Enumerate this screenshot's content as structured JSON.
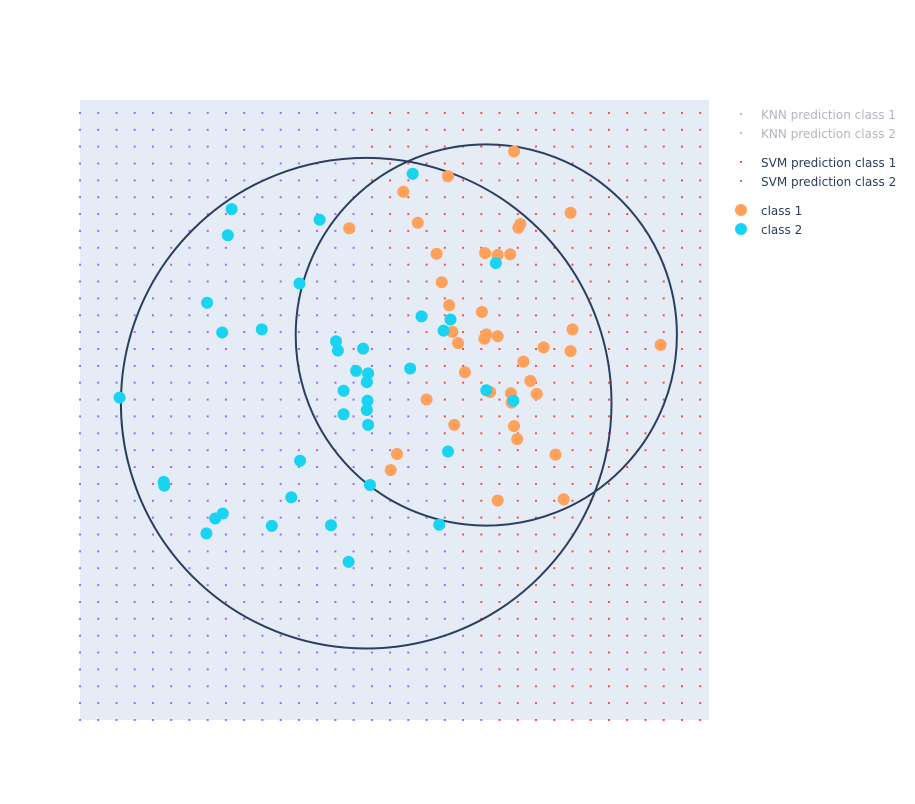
{
  "chart_data": {
    "type": "scatter",
    "title": "",
    "xlabel": "",
    "ylabel": "",
    "xlim": [
      0,
      1
    ],
    "ylim": [
      0,
      1
    ],
    "grid": false,
    "background_color": "#E5ECF6",
    "legend_position": "top-right",
    "legend": {
      "knn_class_1": "KNN prediction class 1",
      "knn_class_2": "KNN prediction class 2",
      "svm_class_1": "SVM prediction class 1",
      "svm_class_2": "SVM prediction class 2",
      "class_1": "class 1",
      "class_2": "class 2"
    },
    "colors": {
      "svm_class_1": "#EF553B",
      "svm_class_2": "#AB63FA",
      "knn_class_1": "#636EFA",
      "knn_class_2": "#00CC96",
      "class_1": "#FFA15A",
      "class_2": "#19D3F3",
      "circle": "#2A3F5F",
      "legend_hidden_text": "#B0B6C0"
    },
    "prediction_grid": {
      "x_step": 0.029,
      "y_step": 0.0272,
      "svm_boundary_x_at_y": [
        {
          "y": 1.0,
          "x": 0.43
        },
        {
          "y": 0.5,
          "x": 0.56
        },
        {
          "y": 0.0,
          "x": 0.66
        }
      ]
    },
    "circles": [
      {
        "cx": 0.455,
        "cy": 0.511,
        "r": 0.39
      },
      {
        "cx": 0.646,
        "cy": 0.621,
        "r": 0.303
      }
    ],
    "series": [
      {
        "name": "class 1",
        "points": [
          [
            0.69,
            0.917
          ],
          [
            0.585,
            0.877
          ],
          [
            0.514,
            0.852
          ],
          [
            0.78,
            0.818
          ],
          [
            0.537,
            0.802
          ],
          [
            0.428,
            0.793
          ],
          [
            0.7,
            0.8
          ],
          [
            0.697,
            0.794
          ],
          [
            0.567,
            0.752
          ],
          [
            0.644,
            0.753
          ],
          [
            0.664,
            0.75
          ],
          [
            0.684,
            0.751
          ],
          [
            0.575,
            0.706
          ],
          [
            0.587,
            0.669
          ],
          [
            0.639,
            0.658
          ],
          [
            0.783,
            0.63
          ],
          [
            0.592,
            0.626
          ],
          [
            0.646,
            0.622
          ],
          [
            0.664,
            0.619
          ],
          [
            0.643,
            0.615
          ],
          [
            0.601,
            0.608
          ],
          [
            0.737,
            0.601
          ],
          [
            0.78,
            0.595
          ],
          [
            0.923,
            0.605
          ],
          [
            0.705,
            0.578
          ],
          [
            0.612,
            0.561
          ],
          [
            0.716,
            0.547
          ],
          [
            0.652,
            0.529
          ],
          [
            0.685,
            0.527
          ],
          [
            0.551,
            0.517
          ],
          [
            0.726,
            0.526
          ],
          [
            0.686,
            0.512
          ],
          [
            0.595,
            0.476
          ],
          [
            0.69,
            0.474
          ],
          [
            0.504,
            0.429
          ],
          [
            0.695,
            0.453
          ],
          [
            0.756,
            0.428
          ],
          [
            0.494,
            0.403
          ],
          [
            0.664,
            0.354
          ],
          [
            0.769,
            0.356
          ]
        ]
      },
      {
        "name": "class 2",
        "points": [
          [
            0.529,
            0.881
          ],
          [
            0.241,
            0.824
          ],
          [
            0.381,
            0.807
          ],
          [
            0.235,
            0.782
          ],
          [
            0.349,
            0.704
          ],
          [
            0.202,
            0.673
          ],
          [
            0.226,
            0.625
          ],
          [
            0.289,
            0.63
          ],
          [
            0.543,
            0.651
          ],
          [
            0.589,
            0.646
          ],
          [
            0.578,
            0.628
          ],
          [
            0.407,
            0.611
          ],
          [
            0.41,
            0.596
          ],
          [
            0.45,
            0.599
          ],
          [
            0.661,
            0.737
          ],
          [
            0.525,
            0.567
          ],
          [
            0.439,
            0.563
          ],
          [
            0.458,
            0.559
          ],
          [
            0.456,
            0.545
          ],
          [
            0.419,
            0.531
          ],
          [
            0.646,
            0.532
          ],
          [
            0.457,
            0.515
          ],
          [
            0.063,
            0.52
          ],
          [
            0.689,
            0.515
          ],
          [
            0.456,
            0.5
          ],
          [
            0.419,
            0.493
          ],
          [
            0.458,
            0.476
          ],
          [
            0.585,
            0.433
          ],
          [
            0.35,
            0.418
          ],
          [
            0.461,
            0.379
          ],
          [
            0.133,
            0.384
          ],
          [
            0.134,
            0.378
          ],
          [
            0.336,
            0.359
          ],
          [
            0.227,
            0.333
          ],
          [
            0.215,
            0.325
          ],
          [
            0.571,
            0.315
          ],
          [
            0.305,
            0.313
          ],
          [
            0.399,
            0.314
          ],
          [
            0.201,
            0.301
          ],
          [
            0.427,
            0.255
          ]
        ]
      }
    ]
  }
}
